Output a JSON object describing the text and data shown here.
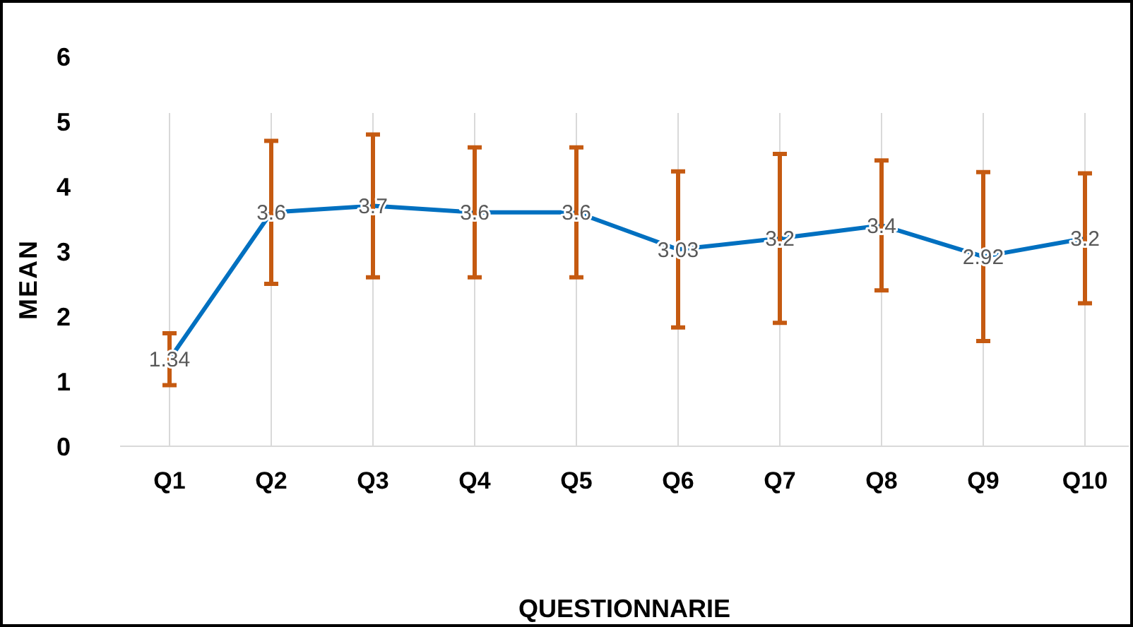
{
  "chart_data": {
    "type": "line",
    "xlabel": "QUESTIONNARIE",
    "ylabel": "MEAN",
    "categories": [
      "Q1",
      "Q2",
      "Q3",
      "Q4",
      "Q5",
      "Q6",
      "Q7",
      "Q8",
      "Q9",
      "Q10"
    ],
    "series": [
      {
        "color": "#0070c0",
        "values": [
          1.34,
          3.6,
          3.7,
          3.6,
          3.6,
          3.03,
          3.2,
          3.4,
          2.92,
          3.2
        ],
        "errors": [
          0.4,
          1.1,
          1.1,
          1.0,
          1.0,
          1.2,
          1.3,
          1.0,
          1.3,
          1.0
        ]
      }
    ],
    "ylim": [
      0,
      6
    ],
    "yticks": [
      0,
      1,
      2,
      3,
      4,
      5,
      6
    ],
    "grid": "x",
    "data_labels": true,
    "marker": "none",
    "line_style": "solid"
  }
}
